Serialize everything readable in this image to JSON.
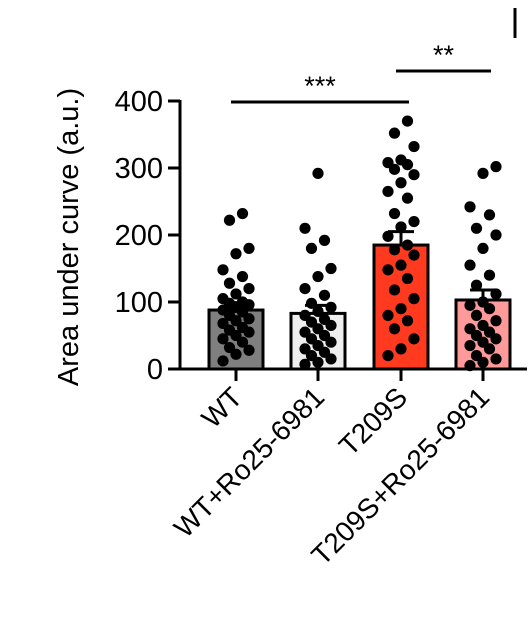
{
  "chart_data": {
    "type": "bar",
    "ylabel": "Area under curve (a.u.)",
    "ylim": [
      0,
      400
    ],
    "yticks": [
      0,
      100,
      200,
      300,
      400
    ],
    "categories": [
      "WT",
      "WT+Ro25-6981",
      "T209S",
      "T209S+Ro25-6981"
    ],
    "values": [
      88,
      83,
      185,
      103
    ],
    "errors": [
      11,
      12,
      20,
      15
    ],
    "bar_colors": [
      "#7f7f7f",
      "#eeeeee",
      "#ff3a1f",
      "#ff9a9a"
    ],
    "points": [
      [
        232,
        222,
        180,
        172,
        148,
        138,
        128,
        120,
        112,
        105,
        100,
        98,
        96,
        92,
        88,
        85,
        80,
        75,
        72,
        68,
        62,
        58,
        55,
        50,
        45,
        40,
        32,
        28,
        22,
        12
      ],
      [
        292,
        210,
        192,
        180,
        150,
        138,
        120,
        110,
        98,
        92,
        86,
        80,
        74,
        70,
        65,
        60,
        55,
        50,
        45,
        40,
        35,
        30,
        25,
        20,
        15,
        10,
        7
      ],
      [
        370,
        352,
        332,
        312,
        308,
        305,
        298,
        290,
        278,
        265,
        255,
        232,
        220,
        212,
        198,
        185,
        178,
        170,
        155,
        148,
        135,
        118,
        105,
        90,
        80,
        72,
        60,
        45,
        30,
        20
      ],
      [
        302,
        292,
        242,
        230,
        210,
        200,
        180,
        155,
        140,
        125,
        112,
        100,
        95,
        90,
        80,
        72,
        65,
        60,
        55,
        50,
        45,
        40,
        35,
        30,
        20,
        15,
        10,
        5
      ]
    ],
    "significance": [
      {
        "from": 0,
        "to": 2,
        "label": "***"
      },
      {
        "from": 2,
        "to": 3,
        "label": "**"
      }
    ]
  }
}
